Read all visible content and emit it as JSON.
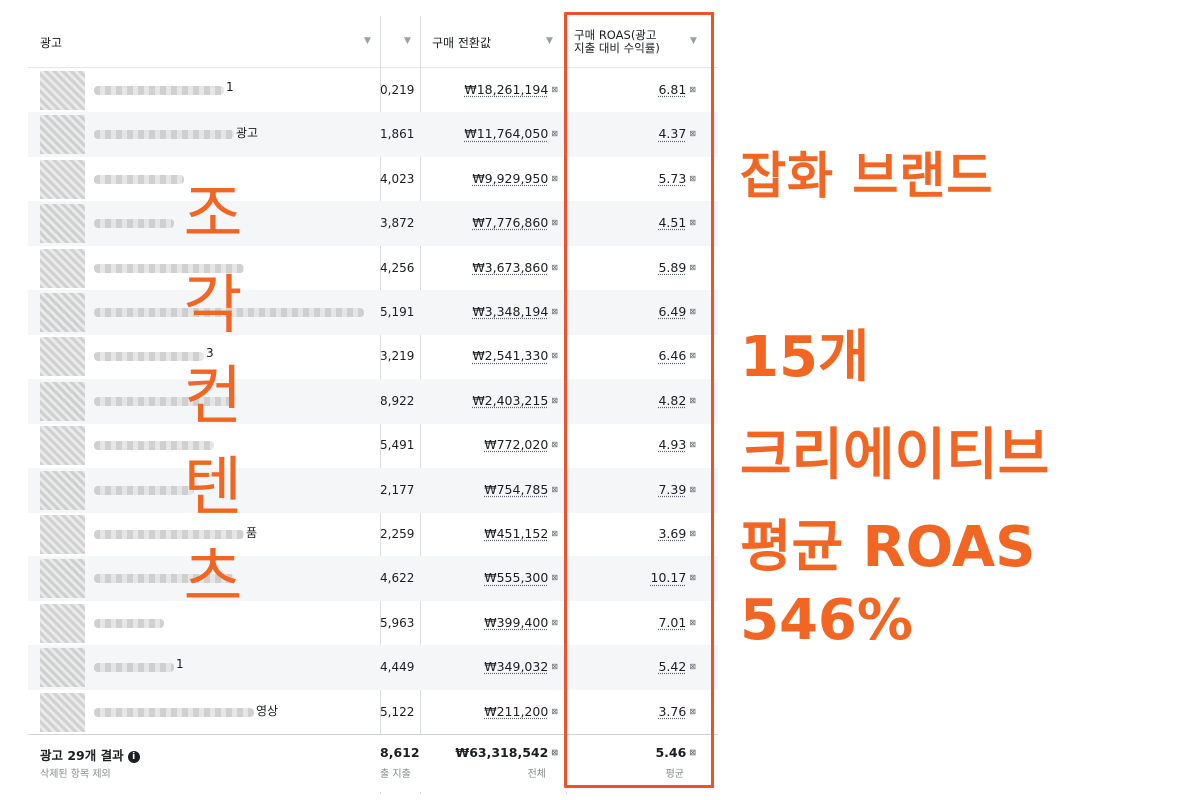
{
  "table": {
    "headers": {
      "ad": "광고",
      "conversion_value": "구매 전환값",
      "roas_line1": "구매 ROAS(광고",
      "roas_line2": "지출 대비 수익률)"
    },
    "rows": [
      {
        "suffix": "1",
        "cut_num": "0,219",
        "value": "₩18,261,194",
        "roas": "6.81"
      },
      {
        "suffix": "광고",
        "cut_num": "1,861",
        "value": "₩11,764,050",
        "roas": "4.37"
      },
      {
        "suffix": "",
        "cut_num": "4,023",
        "value": "₩9,929,950",
        "roas": "5.73"
      },
      {
        "suffix": "",
        "cut_num": "3,872",
        "value": "₩7,776,860",
        "roas": "4.51"
      },
      {
        "suffix": "",
        "cut_num": "4,256",
        "value": "₩3,673,860",
        "roas": "5.89"
      },
      {
        "suffix": "",
        "cut_num": "5,191",
        "value": "₩3,348,194",
        "roas": "6.49"
      },
      {
        "suffix": "3",
        "cut_num": "3,219",
        "value": "₩2,541,330",
        "roas": "6.46"
      },
      {
        "suffix": "",
        "cut_num": "8,922",
        "value": "₩2,403,215",
        "roas": "4.82"
      },
      {
        "suffix": "",
        "cut_num": "5,491",
        "value": "₩772,020",
        "roas": "4.93"
      },
      {
        "suffix": "",
        "cut_num": "2,177",
        "value": "₩754,785",
        "roas": "7.39"
      },
      {
        "suffix": "품",
        "cut_num": "2,259",
        "value": "₩451,152",
        "roas": "3.69"
      },
      {
        "suffix": "",
        "cut_num": "4,622",
        "value": "₩555,300",
        "roas": "10.17"
      },
      {
        "suffix": "",
        "cut_num": "5,963",
        "value": "₩399,400",
        "roas": "7.01"
      },
      {
        "suffix": "1",
        "cut_num": "4,449",
        "value": "₩349,032",
        "roas": "5.42"
      },
      {
        "suffix": "영상",
        "cut_num": "5,122",
        "value": "₩211,200",
        "roas": "3.76"
      }
    ],
    "footer": {
      "title": "광고 29개 결과",
      "subtitle": "삭제된 항목 제외",
      "cut_num": "8,612",
      "cut_caption": "출 지출",
      "total_value": "₩63,318,542",
      "total_caption": "전체",
      "avg_roas": "5.46",
      "avg_caption": "평균"
    }
  },
  "overlay": {
    "vertical_chars": [
      "조",
      "각",
      "컨",
      "텐",
      "츠"
    ],
    "brand": "잡화 브랜드",
    "line1": "15개",
    "line2": "크리에이티브",
    "line3": "평균 ROAS",
    "line4": "546%"
  },
  "colors": {
    "accent": "#f26522",
    "highlight_border": "#f0502d"
  }
}
